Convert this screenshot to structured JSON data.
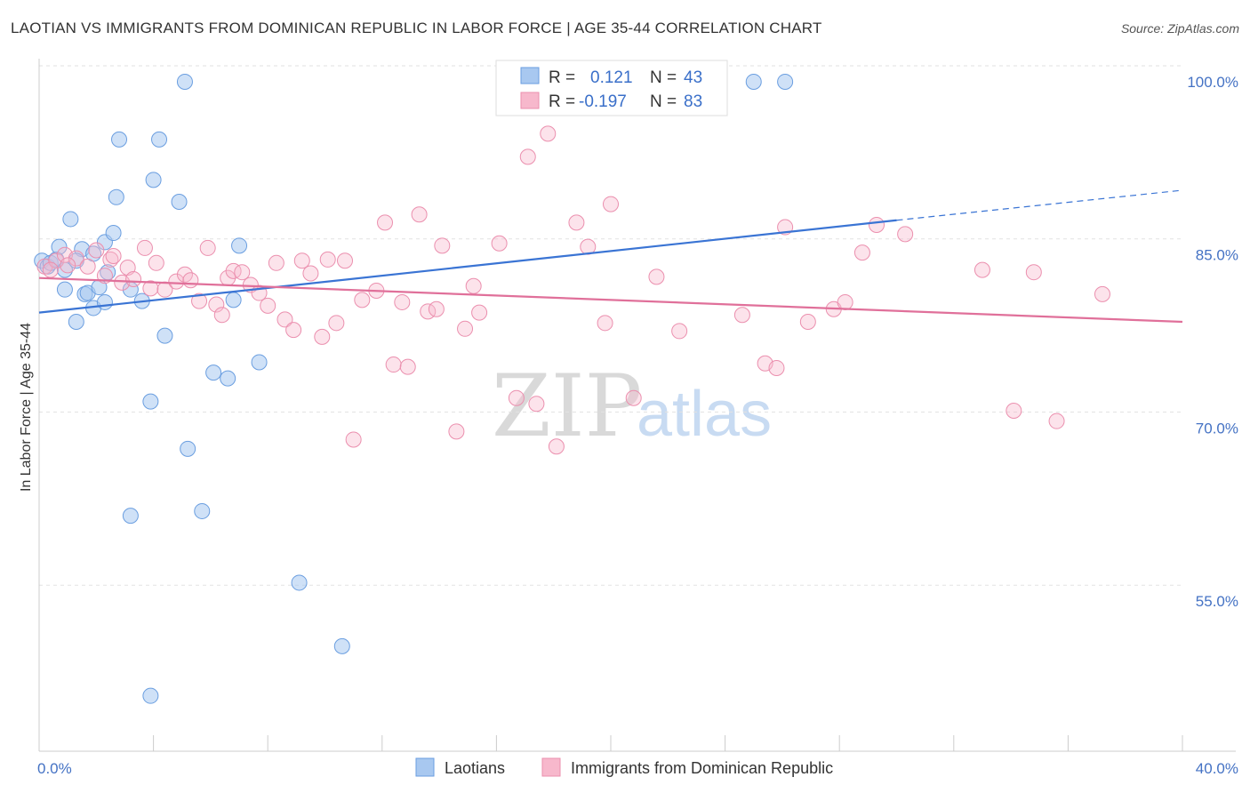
{
  "header": {
    "title": "LAOTIAN VS IMMIGRANTS FROM DOMINICAN REPUBLIC IN LABOR FORCE | AGE 35-44 CORRELATION CHART",
    "source": "Source: ZipAtlas.com"
  },
  "watermark": {
    "zip": "ZIP",
    "atlas": "atlas"
  },
  "chart_data": {
    "type": "scatter",
    "ylabel": "In Labor Force | Age 35-44",
    "xlim": [
      0,
      40
    ],
    "ylim": [
      42,
      102
    ],
    "x_tick_labels": [
      "0.0%",
      "40.0%"
    ],
    "y_ticks": [
      100,
      85,
      70,
      55
    ],
    "y_tick_labels": [
      "100.0%",
      "85.0%",
      "70.0%",
      "55.0%"
    ],
    "grid": "horizontal dashed",
    "legend_position": "top-center",
    "stats_legend": [
      {
        "r_label": "R = ",
        "r_value": "0.121",
        "n_label": "N = ",
        "n_value": "43",
        "color": "#a8c8f0"
      },
      {
        "r_label": "R = ",
        "r_value": "-0.197",
        "n_label": "N = ",
        "n_value": "83",
        "color": "#f7b8cc"
      }
    ],
    "series": [
      {
        "name": "Laotians",
        "color": "#a8c8f0",
        "stroke": "#6a9ee0",
        "trend": {
          "x": [
            0,
            30
          ],
          "y": [
            80.0,
            88.0
          ],
          "dashed_to": [
            40,
            90.6
          ],
          "color": "#3a74d4"
        },
        "points": [
          [
            0.1,
            84.5
          ],
          [
            0.3,
            84.0
          ],
          [
            0.4,
            84.3
          ],
          [
            0.6,
            84.6
          ],
          [
            0.7,
            85.7
          ],
          [
            0.9,
            83.7
          ],
          [
            0.9,
            82.0
          ],
          [
            1.1,
            88.1
          ],
          [
            1.3,
            79.2
          ],
          [
            1.5,
            85.5
          ],
          [
            1.6,
            81.6
          ],
          [
            1.7,
            81.7
          ],
          [
            1.9,
            85.1
          ],
          [
            1.9,
            80.4
          ],
          [
            2.1,
            82.2
          ],
          [
            2.3,
            80.9
          ],
          [
            2.3,
            86.1
          ],
          [
            2.4,
            83.5
          ],
          [
            2.6,
            86.9
          ],
          [
            2.7,
            90.0
          ],
          [
            2.8,
            95.0
          ],
          [
            3.2,
            82.0
          ],
          [
            3.2,
            62.4
          ],
          [
            3.6,
            81.0
          ],
          [
            3.9,
            72.3
          ],
          [
            4.0,
            91.5
          ],
          [
            4.2,
            95.0
          ],
          [
            4.4,
            78.0
          ],
          [
            4.9,
            89.6
          ],
          [
            5.1,
            100.0
          ],
          [
            5.2,
            68.2
          ],
          [
            5.7,
            62.8
          ],
          [
            6.1,
            74.8
          ],
          [
            6.6,
            74.3
          ],
          [
            6.8,
            81.1
          ],
          [
            7.0,
            85.8
          ],
          [
            7.7,
            75.7
          ],
          [
            9.1,
            56.6
          ],
          [
            10.6,
            51.1
          ],
          [
            3.9,
            46.8
          ],
          [
            25.0,
            100.0
          ],
          [
            26.1,
            100.0
          ],
          [
            1.3,
            84.5
          ]
        ]
      },
      {
        "name": "Immigrants from Dominican Republic",
        "color": "#f7b8cc",
        "stroke": "#eb8fae",
        "trend": {
          "x": [
            0,
            40
          ],
          "y": [
            83.0,
            79.2
          ],
          "color": "#e0709a"
        },
        "points": [
          [
            0.2,
            84.0
          ],
          [
            0.6,
            84.5
          ],
          [
            0.9,
            85.0
          ],
          [
            1.3,
            84.7
          ],
          [
            1.7,
            84.0
          ],
          [
            2.0,
            85.4
          ],
          [
            2.3,
            83.2
          ],
          [
            2.5,
            84.6
          ],
          [
            2.9,
            82.6
          ],
          [
            3.1,
            83.9
          ],
          [
            3.3,
            82.9
          ],
          [
            3.7,
            85.6
          ],
          [
            3.9,
            82.1
          ],
          [
            4.1,
            84.3
          ],
          [
            4.4,
            82.0
          ],
          [
            4.8,
            82.7
          ],
          [
            5.1,
            83.3
          ],
          [
            5.3,
            82.8
          ],
          [
            5.6,
            81.0
          ],
          [
            5.9,
            85.6
          ],
          [
            6.2,
            80.7
          ],
          [
            6.4,
            79.8
          ],
          [
            6.6,
            83.0
          ],
          [
            6.8,
            83.6
          ],
          [
            7.1,
            83.5
          ],
          [
            7.4,
            82.4
          ],
          [
            7.7,
            81.7
          ],
          [
            8.0,
            80.6
          ],
          [
            8.3,
            84.3
          ],
          [
            8.6,
            79.4
          ],
          [
            8.9,
            78.5
          ],
          [
            9.2,
            84.5
          ],
          [
            9.5,
            83.4
          ],
          [
            9.9,
            77.9
          ],
          [
            10.1,
            84.6
          ],
          [
            10.4,
            79.1
          ],
          [
            10.7,
            84.5
          ],
          [
            11.0,
            69.0
          ],
          [
            11.3,
            81.1
          ],
          [
            11.8,
            81.9
          ],
          [
            12.1,
            87.8
          ],
          [
            12.4,
            75.5
          ],
          [
            12.7,
            80.9
          ],
          [
            12.9,
            75.3
          ],
          [
            13.3,
            88.5
          ],
          [
            13.6,
            80.1
          ],
          [
            13.9,
            80.3
          ],
          [
            14.1,
            85.8
          ],
          [
            14.6,
            69.7
          ],
          [
            14.9,
            78.6
          ],
          [
            15.2,
            82.3
          ],
          [
            15.4,
            80.0
          ],
          [
            16.1,
            86.0
          ],
          [
            16.7,
            72.6
          ],
          [
            17.1,
            93.5
          ],
          [
            17.4,
            72.1
          ],
          [
            17.8,
            95.5
          ],
          [
            18.1,
            68.4
          ],
          [
            18.8,
            87.8
          ],
          [
            19.2,
            85.7
          ],
          [
            19.8,
            79.1
          ],
          [
            20.0,
            89.4
          ],
          [
            20.8,
            72.6
          ],
          [
            21.6,
            83.1
          ],
          [
            22.4,
            78.4
          ],
          [
            24.6,
            79.8
          ],
          [
            25.4,
            75.6
          ],
          [
            25.8,
            75.2
          ],
          [
            26.1,
            87.4
          ],
          [
            26.9,
            79.2
          ],
          [
            27.8,
            80.3
          ],
          [
            28.2,
            80.9
          ],
          [
            28.8,
            85.2
          ],
          [
            29.3,
            87.6
          ],
          [
            30.3,
            86.8
          ],
          [
            33.0,
            83.7
          ],
          [
            34.1,
            71.5
          ],
          [
            34.8,
            83.5
          ],
          [
            35.6,
            70.6
          ],
          [
            37.2,
            81.6
          ],
          [
            0.4,
            83.7
          ],
          [
            1.0,
            84.1
          ],
          [
            2.6,
            84.9
          ]
        ]
      }
    ]
  },
  "bottom_legend": [
    {
      "label": "Laotians",
      "color": "#a8c8f0"
    },
    {
      "label": "Immigrants from Dominican Republic",
      "color": "#f7b8cc"
    }
  ]
}
